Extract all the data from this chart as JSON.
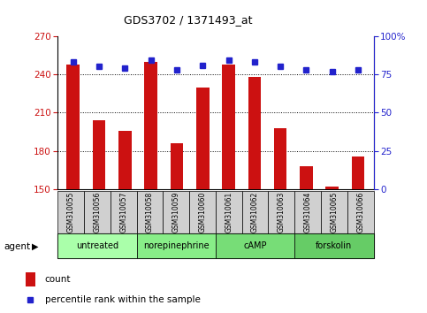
{
  "title": "GDS3702 / 1371493_at",
  "samples": [
    "GSM310055",
    "GSM310056",
    "GSM310057",
    "GSM310058",
    "GSM310059",
    "GSM310060",
    "GSM310061",
    "GSM310062",
    "GSM310063",
    "GSM310064",
    "GSM310065",
    "GSM310066"
  ],
  "counts": [
    248,
    204,
    196,
    250,
    186,
    230,
    248,
    238,
    198,
    168,
    152,
    176
  ],
  "percentile_ranks": [
    83,
    80,
    79,
    84,
    78,
    81,
    84,
    83,
    80,
    78,
    77,
    78
  ],
  "ylim_left": [
    150,
    270
  ],
  "ylim_right": [
    0,
    100
  ],
  "yticks_left": [
    150,
    180,
    210,
    240,
    270
  ],
  "yticks_right": [
    0,
    25,
    50,
    75,
    100
  ],
  "bar_color": "#cc1111",
  "dot_color": "#2222cc",
  "grid_color": "#000000",
  "agent_groups": [
    {
      "label": "untreated",
      "start": 0,
      "end": 3,
      "color": "#aaffaa"
    },
    {
      "label": "norepinephrine",
      "start": 3,
      "end": 6,
      "color": "#88ee88"
    },
    {
      "label": "cAMP",
      "start": 6,
      "end": 9,
      "color": "#77dd77"
    },
    {
      "label": "forskolin",
      "start": 9,
      "end": 12,
      "color": "#66cc66"
    }
  ],
  "tick_label_color_left": "#cc1111",
  "tick_label_color_right": "#2222cc",
  "bar_width": 0.5,
  "legend_count_color": "#cc1111",
  "legend_pct_color": "#2222cc",
  "sample_bg_color": "#d0d0d0",
  "right_axis_label": "100%"
}
